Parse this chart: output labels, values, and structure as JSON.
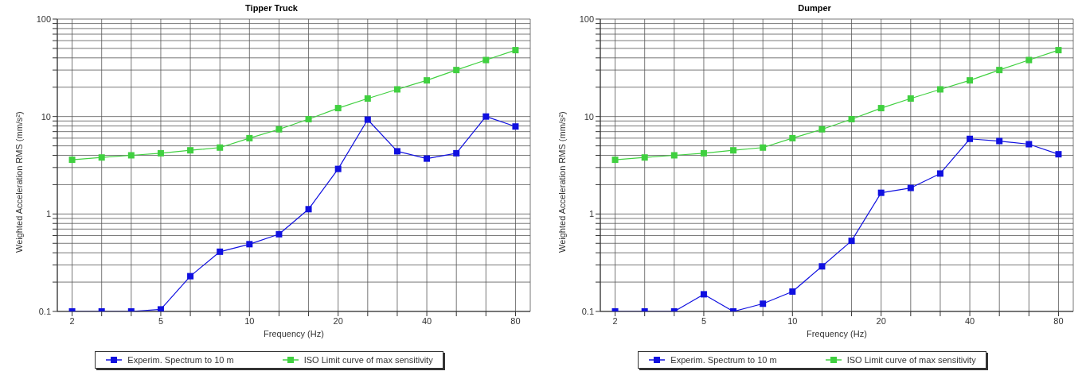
{
  "chart_data": [
    {
      "type": "line",
      "title": "Tipper Truck",
      "xlabel": "Frequency (Hz)",
      "ylabel": "Weighted Acceleration RMS (mm/s²)",
      "categories": [
        "2",
        null,
        null,
        "5",
        null,
        null,
        "10",
        null,
        null,
        "20",
        null,
        null,
        "40",
        null,
        null,
        "80"
      ],
      "series": [
        {
          "name": "Experim. Spectrum to 10 m",
          "color": "#1010e0",
          "values": [
            0.1,
            0.1,
            0.1,
            0.105,
            0.23,
            0.41,
            0.49,
            0.62,
            1.12,
            2.9,
            9.3,
            4.4,
            3.7,
            4.2,
            10,
            7.9
          ]
        },
        {
          "name": "ISO Limit curve of max sensitivity",
          "color": "#40d040",
          "values": [
            3.6,
            3.8,
            4.0,
            4.2,
            4.5,
            4.8,
            6.0,
            7.4,
            9.4,
            12.2,
            15.3,
            19,
            23.5,
            30,
            38,
            48
          ]
        }
      ],
      "log": "y",
      "ylim": [
        0.1,
        100
      ],
      "yticks": [
        0.1,
        {
          "value": 0.2,
          "label": null
        },
        {
          "value": 0.3,
          "label": null
        },
        {
          "value": 0.4,
          "label": null
        },
        {
          "value": 0.5,
          "label": null
        },
        {
          "value": 0.6,
          "label": null
        },
        {
          "value": 0.7,
          "label": null
        },
        {
          "value": 0.8,
          "label": null
        },
        {
          "value": 0.9,
          "label": null
        },
        1,
        {
          "value": 2,
          "label": null
        },
        {
          "value": 3,
          "label": null
        },
        {
          "value": 4,
          "label": null
        },
        {
          "value": 5,
          "label": null
        },
        {
          "value": 6,
          "label": null
        },
        {
          "value": 7,
          "label": null
        },
        {
          "value": 8,
          "label": null
        },
        {
          "value": 9,
          "label": null
        },
        10,
        {
          "value": 20,
          "label": null
        },
        {
          "value": 30,
          "label": null
        },
        {
          "value": 40,
          "label": null
        },
        {
          "value": 50,
          "label": null
        },
        {
          "value": 60,
          "label": null
        },
        {
          "value": 70,
          "label": null
        },
        {
          "value": 80,
          "label": null
        },
        {
          "value": 90,
          "label": null
        },
        100
      ],
      "grid": true,
      "legend": "bottom",
      "marker": "square"
    },
    {
      "type": "line",
      "title": "Dumper",
      "xlabel": "Frequency (Hz)",
      "ylabel": "Weighted Acceleration RMS (mm/s²)",
      "categories": [
        "2",
        null,
        null,
        "5",
        null,
        null,
        "10",
        null,
        null,
        "20",
        null,
        null,
        "40",
        null,
        null,
        "80"
      ],
      "series": [
        {
          "name": "Experim. Spectrum to 10 m",
          "color": "#1010e0",
          "values": [
            0.1,
            0.1,
            0.1,
            0.15,
            0.1,
            0.12,
            0.16,
            0.29,
            0.53,
            1.65,
            1.85,
            2.6,
            5.9,
            5.6,
            5.2,
            4.1
          ]
        },
        {
          "name": "ISO Limit curve of max sensitivity",
          "color": "#40d040",
          "values": [
            3.6,
            3.8,
            4.0,
            4.2,
            4.5,
            4.8,
            6.0,
            7.4,
            9.4,
            12.2,
            15.3,
            19,
            23.5,
            30,
            38,
            48
          ]
        }
      ],
      "log": "y",
      "ylim": [
        0.1,
        100
      ],
      "yticks": [
        0.1,
        {
          "value": 0.2,
          "label": null
        },
        {
          "value": 0.3,
          "label": null
        },
        {
          "value": 0.4,
          "label": null
        },
        {
          "value": 0.5,
          "label": null
        },
        {
          "value": 0.6,
          "label": null
        },
        {
          "value": 0.7,
          "label": null
        },
        {
          "value": 0.8,
          "label": null
        },
        {
          "value": 0.9,
          "label": null
        },
        1,
        {
          "value": 2,
          "label": null
        },
        {
          "value": 3,
          "label": null
        },
        {
          "value": 4,
          "label": null
        },
        {
          "value": 5,
          "label": null
        },
        {
          "value": 6,
          "label": null
        },
        {
          "value": 7,
          "label": null
        },
        {
          "value": 8,
          "label": null
        },
        {
          "value": 9,
          "label": null
        },
        10,
        {
          "value": 20,
          "label": null
        },
        {
          "value": 30,
          "label": null
        },
        {
          "value": 40,
          "label": null
        },
        {
          "value": 50,
          "label": null
        },
        {
          "value": 60,
          "label": null
        },
        {
          "value": 70,
          "label": null
        },
        {
          "value": 80,
          "label": null
        },
        {
          "value": 90,
          "label": null
        },
        100
      ],
      "grid": true,
      "legend": "bottom",
      "marker": "square"
    }
  ]
}
